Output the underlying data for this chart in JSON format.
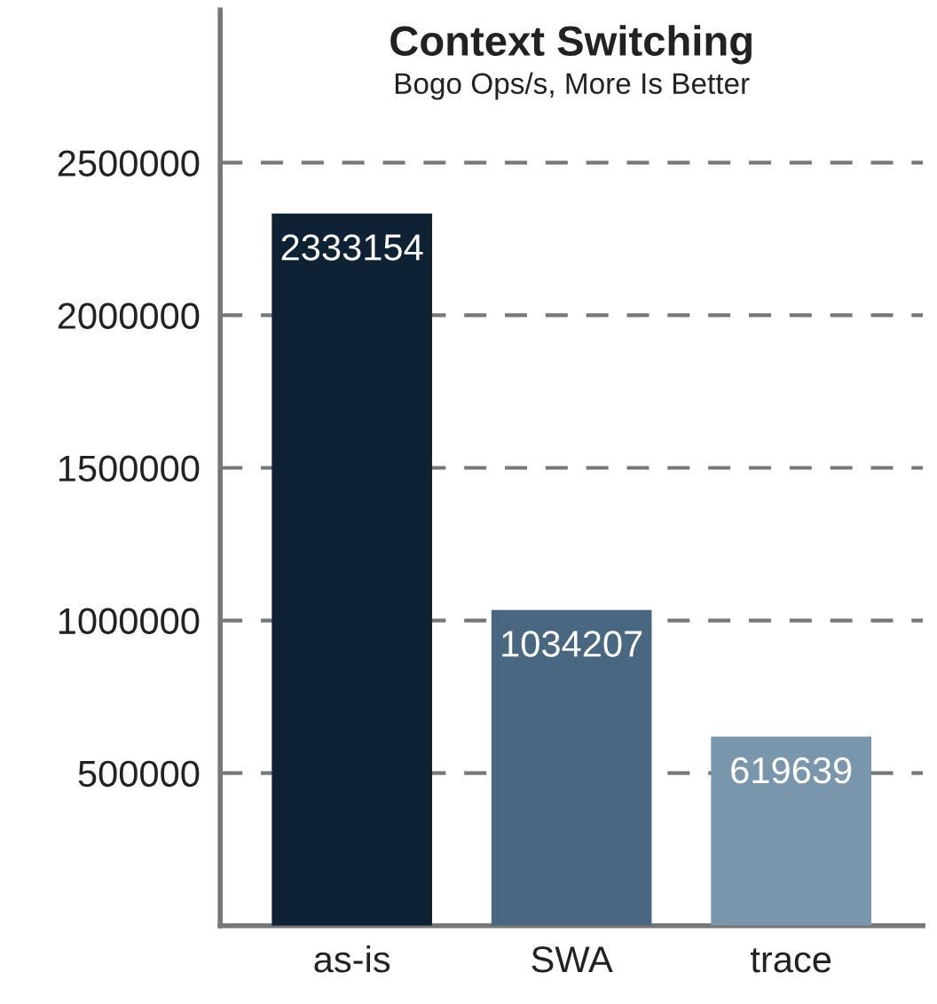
{
  "chart_data": {
    "type": "bar",
    "title": "Context Switching",
    "subtitle": "Bogo Ops/s, More Is Better",
    "categories": [
      "as-is",
      "SWA",
      "trace"
    ],
    "values": [
      2333154,
      1034207,
      619639
    ],
    "colors": [
      "#0f2234",
      "#4a6781",
      "#7a96ac"
    ],
    "data_labels": true,
    "ylim": [
      0,
      3000000
    ],
    "yticks": [
      500000,
      1000000,
      1500000,
      2000000,
      2500000
    ],
    "grid": "y"
  }
}
